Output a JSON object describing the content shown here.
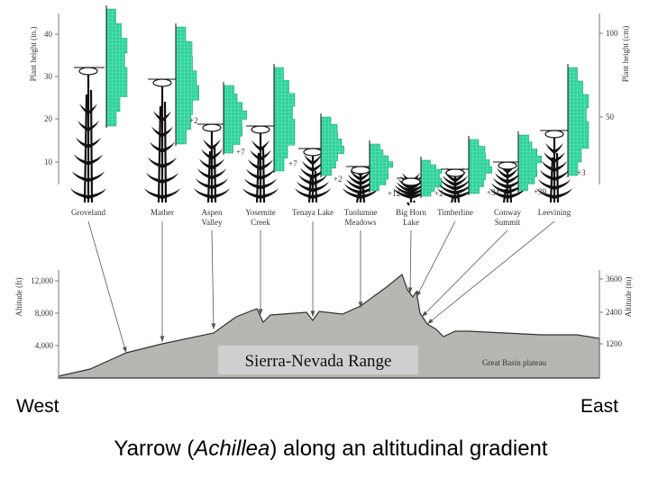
{
  "top_axis": {
    "left_label": "Plant height (in.)",
    "left_ticks": [
      "40",
      "30",
      "20",
      "10"
    ],
    "right_label": "Plant height (cm)",
    "right_ticks": [
      "100",
      "50"
    ]
  },
  "stations": [
    {
      "lines": [
        "Groveland"
      ]
    },
    {
      "lines": [
        "Mather"
      ]
    },
    {
      "lines": [
        "Aspen",
        "Valley"
      ]
    },
    {
      "lines": [
        "Yosemite",
        "Creek"
      ]
    },
    {
      "lines": [
        "Tenaya Lake"
      ]
    },
    {
      "lines": [
        "Tuolumne",
        "Meadows"
      ]
    },
    {
      "lines": [
        "Big Horn",
        "Lake"
      ]
    },
    {
      "lines": [
        "Timberline"
      ]
    },
    {
      "lines": [
        "Conway",
        "Summit"
      ]
    },
    {
      "lines": [
        "Leevining"
      ]
    }
  ],
  "annotations": [
    "+2",
    "+7",
    "+7",
    "+2",
    "+12",
    "+2",
    "+34",
    "+39",
    "+3"
  ],
  "profile": {
    "left_label": "Altitude (ft)",
    "left_ticks": [
      "12,000",
      "8,000",
      "4,000"
    ],
    "right_label": "Altitude (m)",
    "right_ticks": [
      "3600",
      "2400",
      "1200"
    ],
    "range_label": "Sierra-Nevada Range",
    "plateau_label": "Great Basin plateau"
  },
  "west": "West",
  "east": "East",
  "caption": {
    "before": "Yarrow (",
    "genus": "Achillea",
    "after": ") along an altitudinal gradient"
  }
}
